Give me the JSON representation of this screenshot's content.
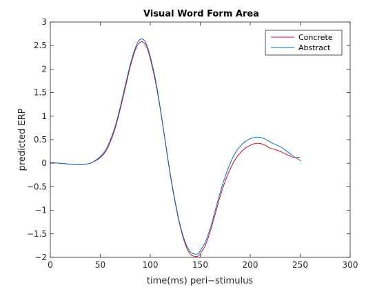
{
  "chart_data": {
    "type": "line",
    "title": "Visual Word Form Area",
    "xlabel": "time(ms) peri−stimulus",
    "ylabel": "predicted ERP",
    "xlim": [
      0,
      300
    ],
    "ylim": [
      -2,
      3
    ],
    "xticks": [
      0,
      50,
      100,
      150,
      200,
      250,
      300
    ],
    "yticks": [
      -2,
      -1.5,
      -1,
      -0.5,
      0,
      0.5,
      1,
      1.5,
      2,
      2.5,
      3
    ],
    "legend_position": "top-right",
    "grid": false,
    "series": [
      {
        "name": "Concrete",
        "color": "#c8102e",
        "x": [
          0,
          10,
          20,
          30,
          35,
          40,
          45,
          50,
          55,
          60,
          65,
          70,
          75,
          80,
          85,
          88,
          91,
          94,
          97,
          100,
          105,
          110,
          115,
          120,
          125,
          130,
          135,
          140,
          145,
          148,
          150,
          155,
          160,
          165,
          170,
          175,
          180,
          185,
          190,
          195,
          200,
          205,
          210,
          215,
          220,
          225,
          230,
          235,
          240,
          245,
          250
        ],
        "y": [
          0.01,
          0.0,
          -0.02,
          -0.03,
          -0.02,
          0.0,
          0.05,
          0.12,
          0.24,
          0.45,
          0.75,
          1.15,
          1.6,
          2.05,
          2.4,
          2.53,
          2.58,
          2.55,
          2.43,
          2.22,
          1.75,
          1.15,
          0.45,
          -0.25,
          -0.85,
          -1.35,
          -1.72,
          -1.93,
          -1.98,
          -1.97,
          -1.92,
          -1.75,
          -1.45,
          -1.08,
          -0.7,
          -0.38,
          -0.12,
          0.08,
          0.22,
          0.32,
          0.38,
          0.42,
          0.42,
          0.38,
          0.32,
          0.29,
          0.25,
          0.2,
          0.15,
          0.12,
          0.13
        ]
      },
      {
        "name": "Abstract",
        "color": "#0072bd",
        "x": [
          0,
          10,
          20,
          30,
          35,
          40,
          45,
          50,
          55,
          60,
          65,
          70,
          75,
          80,
          85,
          88,
          91,
          94,
          97,
          100,
          105,
          110,
          115,
          120,
          125,
          130,
          135,
          140,
          145,
          148,
          150,
          155,
          160,
          165,
          170,
          175,
          180,
          185,
          190,
          195,
          200,
          205,
          210,
          215,
          220,
          225,
          230,
          235,
          240,
          245,
          251
        ],
        "y": [
          0.01,
          0.0,
          -0.02,
          -0.03,
          -0.02,
          0.0,
          0.06,
          0.14,
          0.27,
          0.49,
          0.8,
          1.2,
          1.66,
          2.1,
          2.45,
          2.59,
          2.64,
          2.61,
          2.48,
          2.27,
          1.8,
          1.18,
          0.47,
          -0.22,
          -0.82,
          -1.32,
          -1.68,
          -1.88,
          -1.93,
          -1.92,
          -1.86,
          -1.68,
          -1.38,
          -1.0,
          -0.62,
          -0.28,
          0.0,
          0.22,
          0.36,
          0.46,
          0.52,
          0.55,
          0.55,
          0.51,
          0.45,
          0.4,
          0.35,
          0.28,
          0.2,
          0.12,
          0.05
        ]
      }
    ]
  }
}
